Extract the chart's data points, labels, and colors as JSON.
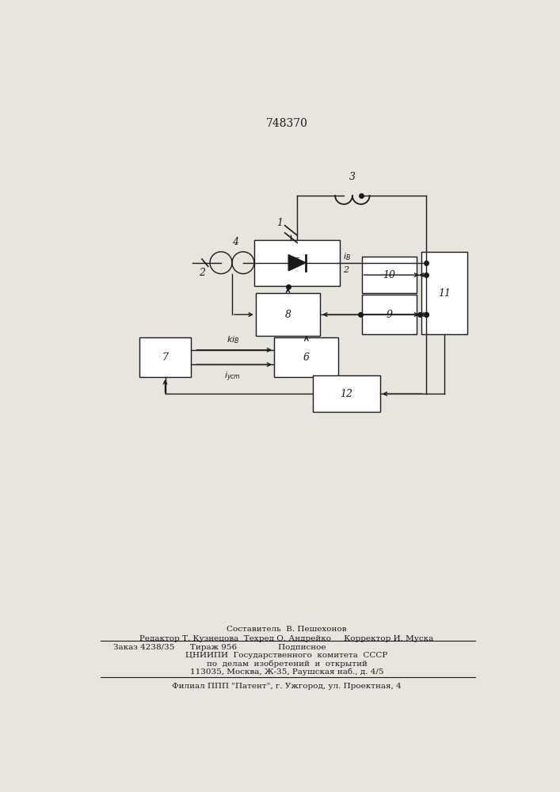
{
  "title": "748370",
  "bg_color": "#e8e4de",
  "line_color": "#1a1a1a",
  "box_color": "#ffffff",
  "footer_line1": "Составитель  В. Пешехонов",
  "footer_line2": "Редактор Т. Кузнецова  Техред О. Андрейко     Корректор И. Муска",
  "footer_line3": "Заказ 4238/35      Тираж 956                Подписное",
  "footer_line4": "ЦНИИПИ  Государственного  комитета  СССР",
  "footer_line5": "по  делам  изобретений  и  открытий",
  "footer_line6": "113035, Москва, Ж-35, Раушская наб., д. 4/5",
  "footer_line7": "Филиал ППП \"Патент\", г. Ужгород, ул. Проектная, 4"
}
